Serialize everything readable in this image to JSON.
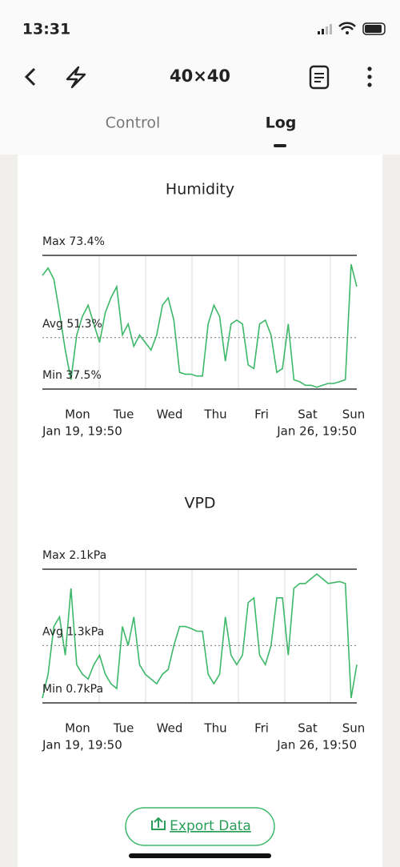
{
  "status_bar": {
    "time": "13:31"
  },
  "header": {
    "title": "40×40"
  },
  "tabs": [
    "Control",
    "Log"
  ],
  "charts": [
    {
      "type": "line",
      "title": "Humidity",
      "color": "#3cb868",
      "ylim": [
        37.5,
        73.4
      ],
      "yticks": [
        {
          "value": 73.4,
          "label": "Max 73.4%"
        },
        {
          "value": 51.3,
          "label": "Avg 51.3%"
        },
        {
          "value": 37.5,
          "label": "Min 37.5%"
        }
      ],
      "days": [
        "Mon",
        "Tue",
        "Wed",
        "Thu",
        "Fri",
        "Sat",
        "Sun"
      ],
      "start_label": "Jan 19, 19:50",
      "end_label": "Jan 26, 19:50",
      "values": [
        68,
        70,
        67,
        58,
        48,
        40,
        52,
        57,
        60,
        55,
        50,
        58,
        62,
        65,
        52,
        55,
        49,
        52,
        50,
        48,
        52,
        60,
        62,
        56,
        42,
        41.5,
        41.5,
        41,
        41,
        55,
        60,
        57,
        45,
        55,
        56,
        55,
        44,
        43,
        55,
        56,
        52,
        42,
        43,
        55,
        40,
        39.5,
        38.5,
        38.5,
        38,
        38.5,
        39,
        39,
        39.5,
        40,
        71,
        65
      ]
    },
    {
      "type": "line",
      "title": "VPD",
      "color": "#3cb868",
      "ylim": [
        0.7,
        2.1
      ],
      "yticks": [
        {
          "value": 2.1,
          "label": "Max 2.1kPa"
        },
        {
          "value": 1.3,
          "label": "Avg 1.3kPa"
        },
        {
          "value": 0.7,
          "label": "Min 0.7kPa"
        }
      ],
      "days": [
        "Mon",
        "Tue",
        "Wed",
        "Thu",
        "Fri",
        "Sat",
        "Sun"
      ],
      "start_label": "Jan 19, 19:50",
      "end_label": "Jan 26, 19:50",
      "values": [
        0.75,
        1.0,
        1.5,
        1.6,
        1.2,
        1.9,
        1.1,
        1.0,
        0.95,
        1.1,
        1.2,
        1.0,
        0.9,
        0.85,
        1.5,
        1.3,
        1.6,
        1.1,
        1.0,
        0.95,
        0.9,
        1.0,
        1.05,
        1.3,
        1.5,
        1.5,
        1.48,
        1.45,
        1.45,
        1.0,
        0.9,
        1.0,
        1.6,
        1.2,
        1.1,
        1.2,
        1.75,
        1.8,
        1.2,
        1.1,
        1.3,
        1.8,
        1.8,
        1.2,
        1.9,
        1.95,
        1.95,
        2.0,
        2.05,
        2.0,
        1.95,
        1.96,
        1.97,
        1.95,
        0.75,
        1.1
      ]
    }
  ],
  "export_button": "Export Data"
}
